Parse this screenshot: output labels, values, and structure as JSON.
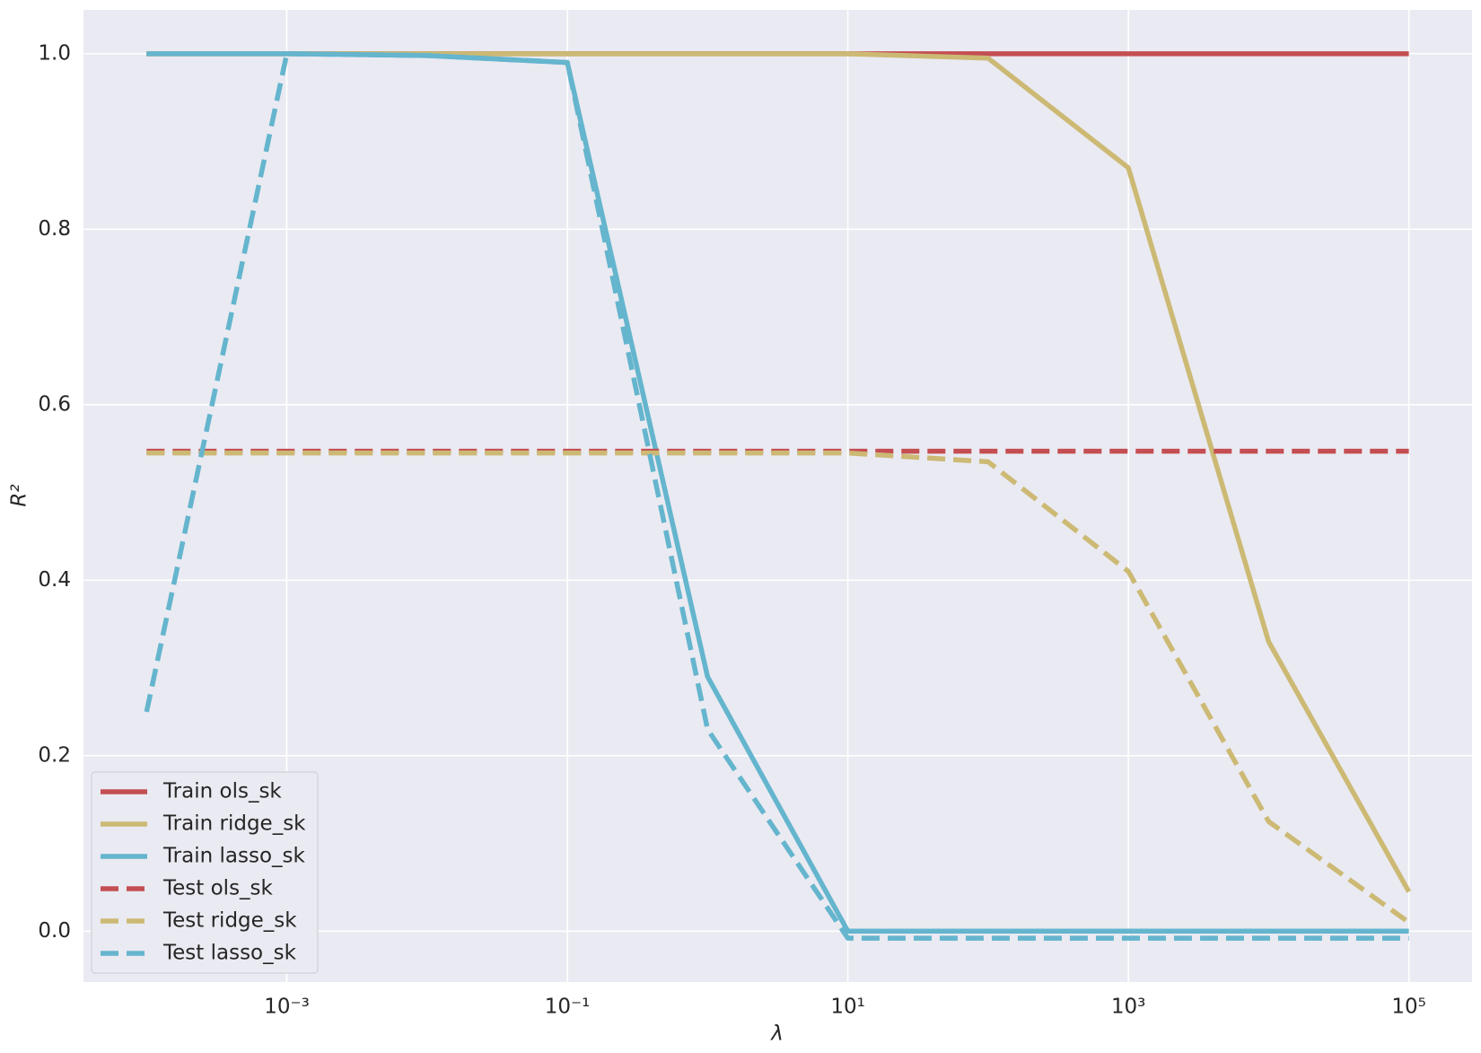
{
  "chart_data": {
    "type": "line",
    "xlabel": "λ",
    "ylabel": "R²",
    "xscale": "log",
    "grid": true,
    "legend": "lower left",
    "x": [
      0.0001,
      0.001,
      0.01,
      0.1,
      1,
      10,
      100,
      1000,
      10000,
      100000
    ],
    "xlim": [
      3.55e-05,
      282000
    ],
    "xticks": [
      {
        "value": 0.001,
        "label": "10⁻³"
      },
      {
        "value": 0.1,
        "label": "10⁻¹"
      },
      {
        "value": 10,
        "label": "10¹"
      },
      {
        "value": 1000,
        "label": "10³"
      },
      {
        "value": 100000,
        "label": "10⁵"
      }
    ],
    "ylim": [
      -0.058,
      1.05
    ],
    "yticks": [
      {
        "value": 0,
        "label": "0.0"
      },
      0.2,
      0.4,
      0.6,
      0.8,
      {
        "value": 1,
        "label": "1.0"
      }
    ],
    "series": [
      {
        "name": "Train ols_sk",
        "color": "#c44e52",
        "linestyle": "solid",
        "values": [
          1,
          1,
          1,
          1,
          1,
          1,
          1,
          1,
          1,
          1
        ]
      },
      {
        "name": "Train ridge_sk",
        "color": "#ccb974",
        "linestyle": "solid",
        "values": [
          1,
          1,
          1,
          1,
          1,
          1,
          0.995,
          0.87,
          0.33,
          0.045
        ]
      },
      {
        "name": "Train lasso_sk",
        "color": "#64b5cd",
        "linestyle": "solid",
        "values": [
          1,
          1,
          0.998,
          0.99,
          0.29,
          0,
          0,
          0,
          0,
          0
        ]
      },
      {
        "name": "Test ols_sk",
        "color": "#c44e52",
        "linestyle": "dashed",
        "values": [
          0.547,
          0.547,
          0.547,
          0.547,
          0.547,
          0.547,
          0.547,
          0.547,
          0.547,
          0.547
        ]
      },
      {
        "name": "Test ridge_sk",
        "color": "#ccb974",
        "linestyle": "dashed",
        "values": [
          0.545,
          0.545,
          0.545,
          0.545,
          0.545,
          0.545,
          0.535,
          0.41,
          0.125,
          0.01
        ]
      },
      {
        "name": "Test lasso_sk",
        "color": "#64b5cd",
        "linestyle": "dashed",
        "values": [
          0.25,
          1,
          0.998,
          0.99,
          0.23,
          -0.008,
          -0.008,
          -0.008,
          -0.008,
          -0.008
        ]
      }
    ]
  }
}
